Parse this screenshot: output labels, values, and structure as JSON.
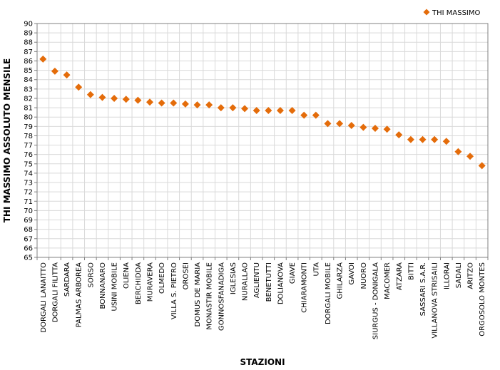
{
  "chart_data": {
    "type": "scatter",
    "title": "",
    "xlabel": "STAZIONI",
    "ylabel": "THI MASSIMO ASSOLUTO MENSILE",
    "ylim": [
      65,
      90
    ],
    "ytick_step": 1,
    "grid": true,
    "legend_position": "top-right",
    "marker": "diamond",
    "series_color": "#E46C0A",
    "grid_color": "#D9D9D9",
    "categories": [
      "DORGALI LANAITTO",
      "DORGALI FILITTA",
      "SARDARA",
      "PALMAS ARBOREA",
      "SORSO",
      "BONNANARO",
      "USINI MOBILE",
      "OLIENA",
      "BERCHIDDA",
      "MURAVERA",
      "OLMEDO",
      "VILLA S. PIETRO",
      "OROSEI",
      "DOMUS DE MARIA",
      "MONASTIR MOBILE",
      "GONNOSFANADIGA",
      "IGLESIAS",
      "NURALLAO",
      "AGLIENTU",
      "BENETUTTI",
      "DOLIANOVA",
      "GIAVE",
      "CHIARAMONTI",
      "UTA",
      "DORGALI MOBILE",
      "GHILARZA",
      "GAVOI",
      "NUORO",
      "SIURGUS - DONIGALA",
      "MACOMER",
      "ATZARA",
      "BITTI",
      "SASSARI S.A.R.",
      "VILLANOVA STRISAILI",
      "ILLORAI",
      "SADALI",
      "ARITZO",
      "ORGOSOLO MONTES"
    ],
    "series": [
      {
        "name": "THI MASSIMO",
        "values": [
          86.2,
          84.9,
          84.5,
          83.2,
          82.4,
          82.1,
          82.0,
          81.9,
          81.8,
          81.6,
          81.5,
          81.5,
          81.4,
          81.3,
          81.3,
          81.0,
          81.0,
          80.9,
          80.7,
          80.7,
          80.7,
          80.7,
          80.2,
          80.2,
          79.3,
          79.3,
          79.1,
          78.9,
          78.8,
          78.7,
          78.1,
          77.6,
          77.6,
          77.6,
          77.4,
          76.3,
          75.8,
          74.8
        ]
      }
    ]
  }
}
